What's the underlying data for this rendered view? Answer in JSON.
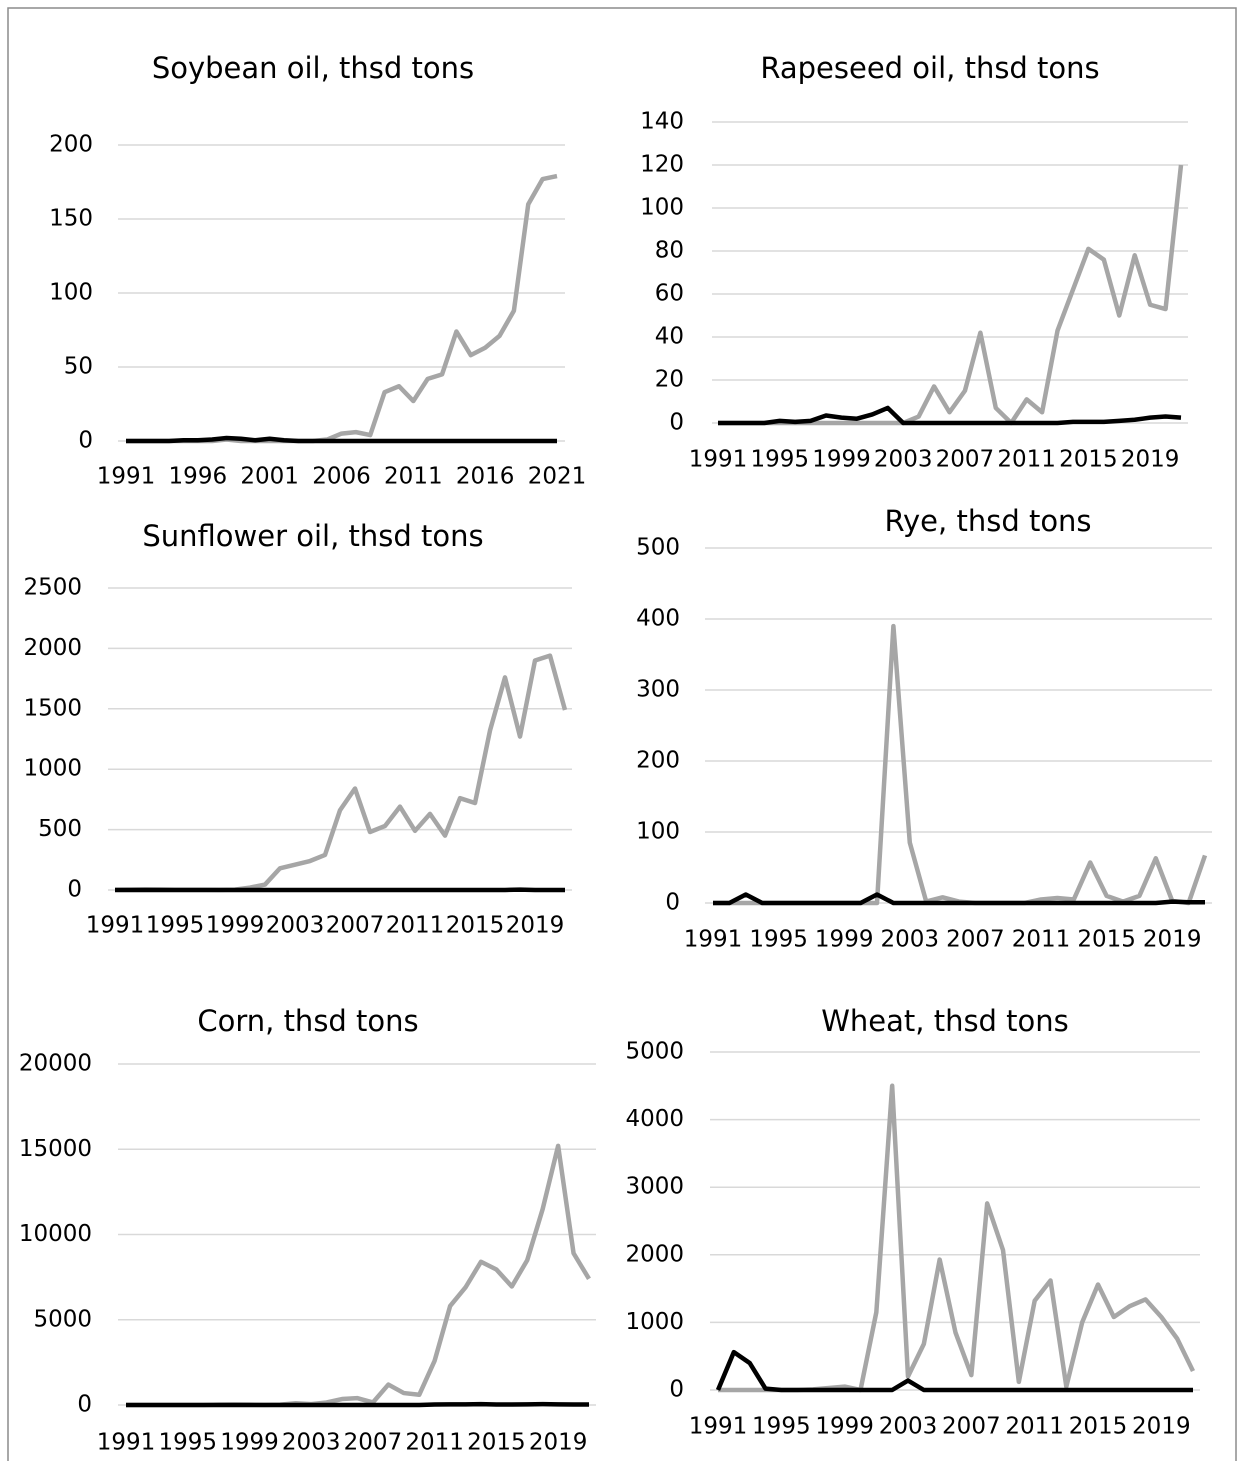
{
  "chart_data": [
    {
      "type": "line",
      "title": "Soybean oil, thsd tons",
      "x": [
        1991,
        1992,
        1993,
        1994,
        1995,
        1996,
        1997,
        1998,
        1999,
        2000,
        2001,
        2002,
        2003,
        2004,
        2005,
        2006,
        2007,
        2008,
        2009,
        2010,
        2011,
        2012,
        2013,
        2014,
        2015,
        2016,
        2017,
        2018,
        2019,
        2020,
        2021
      ],
      "xlim": [
        1991,
        2021
      ],
      "xticks": [
        1991,
        1996,
        2001,
        2006,
        2011,
        2016,
        2021
      ],
      "ylim": [
        0,
        200
      ],
      "yticks": [
        0,
        50,
        100,
        150,
        200
      ],
      "grid": true,
      "series": [
        {
          "color": "#a6a6a6",
          "values": [
            0,
            0,
            0,
            0,
            0,
            0,
            0,
            1,
            0,
            0,
            0,
            0,
            0,
            0,
            1,
            5,
            6,
            4,
            33,
            37,
            27,
            42,
            45,
            74,
            58,
            63,
            71,
            88,
            160,
            177,
            179
          ]
        },
        {
          "color": "#000000",
          "values": [
            0,
            0,
            0,
            0,
            0.5,
            0.5,
            1,
            2,
            1.5,
            0.5,
            1.5,
            0.5,
            0,
            0,
            0,
            0,
            0,
            0,
            0,
            0,
            0,
            0,
            0,
            0,
            0,
            0,
            0,
            0,
            0,
            0,
            0
          ]
        }
      ]
    },
    {
      "type": "line",
      "title": "Rapeseed oil, thsd tons",
      "x": [
        1991,
        1992,
        1993,
        1994,
        1995,
        1996,
        1997,
        1998,
        1999,
        2000,
        2001,
        2002,
        2003,
        2004,
        2005,
        2006,
        2007,
        2008,
        2009,
        2010,
        2011,
        2012,
        2013,
        2014,
        2015,
        2016,
        2017,
        2018,
        2019,
        2020,
        2021
      ],
      "xlim": [
        1991,
        2021
      ],
      "xticks": [
        1991,
        1995,
        1999,
        2003,
        2007,
        2011,
        2015,
        2019
      ],
      "ylim": [
        0,
        140
      ],
      "yticks": [
        0,
        20,
        40,
        60,
        80,
        100,
        120,
        140
      ],
      "grid": true,
      "series": [
        {
          "color": "#a6a6a6",
          "values": [
            0,
            0,
            0,
            0,
            0,
            0,
            0,
            0,
            0,
            0,
            0,
            0,
            0,
            3,
            17,
            5,
            15,
            42,
            7,
            0,
            11,
            5,
            43,
            62,
            81,
            76,
            50,
            78,
            55,
            53,
            120
          ]
        },
        {
          "color": "#000000",
          "values": [
            0,
            0,
            0,
            0,
            1,
            0.5,
            1,
            3.5,
            2.5,
            2,
            4,
            7,
            0,
            0,
            0,
            0,
            0,
            0,
            0,
            0,
            0,
            0,
            0,
            0.5,
            0.5,
            0.5,
            1,
            1.5,
            2.5,
            3,
            2.5
          ]
        }
      ]
    },
    {
      "type": "line",
      "title": "Sunflower oil, thsd tons",
      "x": [
        1991,
        1992,
        1993,
        1994,
        1995,
        1996,
        1997,
        1998,
        1999,
        2000,
        2001,
        2002,
        2003,
        2004,
        2005,
        2006,
        2007,
        2008,
        2009,
        2010,
        2011,
        2012,
        2013,
        2014,
        2015,
        2016,
        2017,
        2018,
        2019,
        2020,
        2021
      ],
      "xlim": [
        1991,
        2021
      ],
      "xticks": [
        1991,
        1995,
        1999,
        2003,
        2007,
        2011,
        2015,
        2019
      ],
      "ylim": [
        0,
        2500
      ],
      "yticks": [
        0,
        500,
        1000,
        1500,
        2000,
        2500
      ],
      "grid": true,
      "series": [
        {
          "color": "#a6a6a6",
          "values": [
            2,
            3,
            5,
            4,
            2,
            2,
            2,
            1,
            3,
            20,
            45,
            180,
            210,
            240,
            290,
            660,
            840,
            480,
            530,
            690,
            490,
            630,
            450,
            760,
            720,
            1320,
            1760,
            1270,
            1900,
            1940,
            1490
          ]
        },
        {
          "color": "#000000",
          "values": [
            0,
            0,
            0,
            0,
            0,
            0,
            0,
            0,
            0,
            0,
            0,
            0,
            0,
            0,
            0,
            0,
            0,
            0,
            0,
            0,
            0,
            0,
            0,
            0,
            0,
            0,
            0,
            3,
            0,
            0,
            0
          ]
        }
      ]
    },
    {
      "type": "line",
      "title": "Rye, thsd tons",
      "x": [
        1991,
        1992,
        1993,
        1994,
        1995,
        1996,
        1997,
        1998,
        1999,
        2000,
        2001,
        2002,
        2003,
        2004,
        2005,
        2006,
        2007,
        2008,
        2009,
        2010,
        2011,
        2012,
        2013,
        2014,
        2015,
        2016,
        2017,
        2018,
        2019,
        2020,
        2021
      ],
      "xlim": [
        1991,
        2021
      ],
      "xticks": [
        1991,
        1995,
        1999,
        2003,
        2007,
        2011,
        2015,
        2019
      ],
      "ylim": [
        0,
        500
      ],
      "yticks": [
        0,
        100,
        200,
        300,
        400,
        500
      ],
      "grid": true,
      "series": [
        {
          "color": "#a6a6a6",
          "values": [
            0,
            0,
            0,
            0,
            0,
            0,
            0,
            0,
            0,
            0,
            0,
            390,
            85,
            2,
            8,
            2,
            0,
            0,
            0,
            0,
            5,
            7,
            5,
            57,
            10,
            2,
            10,
            63,
            3,
            0,
            67
          ]
        },
        {
          "color": "#000000",
          "values": [
            0,
            0,
            12,
            0,
            0,
            0,
            0,
            0,
            0,
            0,
            12,
            0,
            0,
            0,
            0,
            0,
            0,
            0,
            0,
            0,
            0,
            0,
            0,
            0,
            0,
            0,
            0,
            0,
            2,
            1,
            1
          ]
        }
      ]
    },
    {
      "type": "line",
      "title": "Corn, thsd tons",
      "x": [
        1991,
        1992,
        1993,
        1994,
        1995,
        1996,
        1997,
        1998,
        1999,
        2000,
        2001,
        2002,
        2003,
        2004,
        2005,
        2006,
        2007,
        2008,
        2009,
        2010,
        2011,
        2012,
        2013,
        2014,
        2015,
        2016,
        2017,
        2018,
        2019,
        2020,
        2021
      ],
      "xlim": [
        1991,
        2021
      ],
      "xticks": [
        1991,
        1995,
        1999,
        2003,
        2007,
        2011,
        2015,
        2019
      ],
      "ylim": [
        0,
        20000
      ],
      "yticks": [
        0,
        5000,
        10000,
        15000,
        20000
      ],
      "grid": true,
      "series": [
        {
          "color": "#a6a6a6",
          "values": [
            0,
            0,
            0,
            0,
            0,
            0,
            20,
            30,
            20,
            10,
            20,
            100,
            50,
            150,
            350,
            400,
            150,
            1200,
            700,
            600,
            2600,
            5800,
            6900,
            8400,
            7950,
            6950,
            8500,
            11500,
            15200,
            8900,
            7400
          ]
        },
        {
          "color": "#000000",
          "values": [
            0,
            0,
            0,
            0,
            0,
            0,
            0,
            0,
            0,
            0,
            0,
            0,
            0,
            0,
            0,
            0,
            0,
            0,
            0,
            0,
            30,
            40,
            40,
            50,
            30,
            30,
            40,
            50,
            40,
            30,
            30
          ]
        }
      ]
    },
    {
      "type": "line",
      "title": "Wheat, thsd tons",
      "x": [
        1991,
        1992,
        1993,
        1994,
        1995,
        1996,
        1997,
        1998,
        1999,
        2000,
        2001,
        2002,
        2003,
        2004,
        2005,
        2006,
        2007,
        2008,
        2009,
        2010,
        2011,
        2012,
        2013,
        2014,
        2015,
        2016,
        2017,
        2018,
        2019,
        2020,
        2021
      ],
      "xlim": [
        1991,
        2021
      ],
      "xticks": [
        1991,
        1995,
        1999,
        2003,
        2007,
        2011,
        2015,
        2019
      ],
      "ylim": [
        0,
        5000
      ],
      "yticks": [
        0,
        1000,
        2000,
        3000,
        4000,
        5000
      ],
      "grid": true,
      "series": [
        {
          "color": "#a6a6a6",
          "values": [
            0,
            0,
            0,
            0,
            0,
            0,
            10,
            30,
            50,
            0,
            1150,
            4500,
            200,
            680,
            1930,
            850,
            220,
            2760,
            2070,
            120,
            1320,
            1620,
            50,
            1000,
            1560,
            1080,
            1240,
            1340,
            1080,
            760,
            280
          ]
        },
        {
          "color": "#000000",
          "values": [
            0,
            560,
            400,
            20,
            0,
            0,
            0,
            0,
            0,
            0,
            0,
            0,
            140,
            0,
            0,
            0,
            0,
            0,
            0,
            0,
            0,
            0,
            0,
            0,
            0,
            0,
            0,
            0,
            0,
            0,
            0
          ]
        }
      ]
    }
  ]
}
